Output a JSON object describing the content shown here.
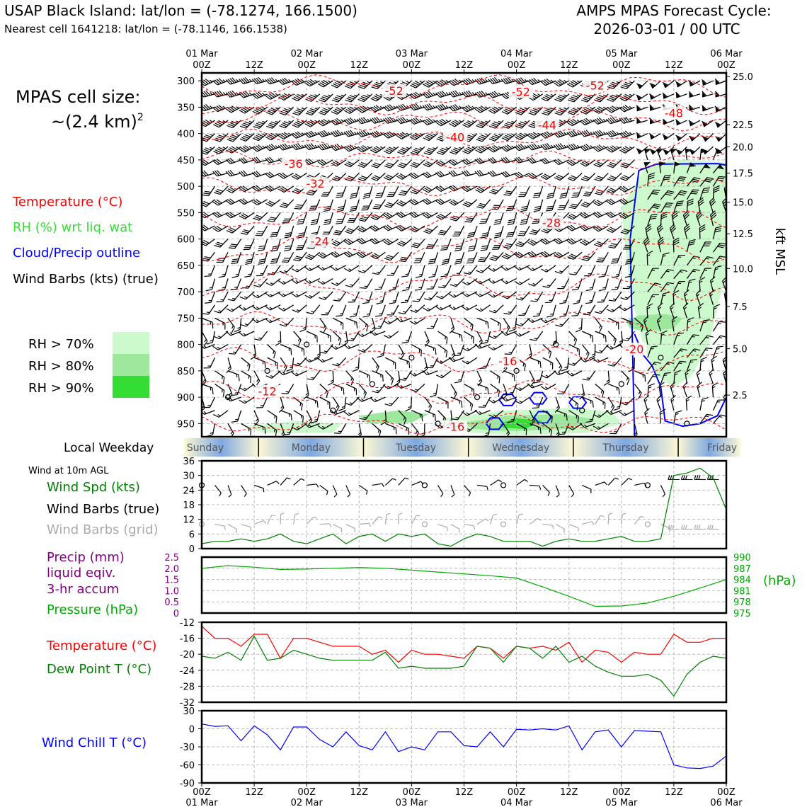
{
  "header": {
    "station": "USAP Black Island: lat/lon = (-78.1274, 166.1500)",
    "nearest": "Nearest cell 1641218: lat/lon = (-78.1146, 166.1538)",
    "cycle_title": "AMPS MPAS Forecast Cycle:",
    "cycle_date": "2026-03-01 / 00 UTC"
  },
  "legend": {
    "cell_size_line1": "MPAS cell size:",
    "cell_size_line2": "~(2.4 km)",
    "cell_size_exp": "2",
    "temperature": "Temperature (°C)",
    "rh": "RH (%) wrt liq. wat",
    "cloud": "Cloud/Precip outline",
    "wind": "Wind Barbs (kts) (true)",
    "rh70": "RH > 70%",
    "rh80": "RH > 80%",
    "rh90": "RH > 90%"
  },
  "colors": {
    "temperature": "#ff0000",
    "rh_text": "#33dd33",
    "cloud": "#0000ff",
    "rh70": "#ccfacc",
    "rh80": "#9ee89e",
    "rh90": "#33dd33",
    "wind_speed": "#008000",
    "dewpoint": "#008000",
    "precip": "#800080",
    "pressure": "#00aa00",
    "windchill": "#0000ff",
    "grid_barbs": "#aaaaaa"
  },
  "time_axis": {
    "top_dates": [
      "01 Mar",
      "",
      "02 Mar",
      "",
      "03 Mar",
      "",
      "04 Mar",
      "",
      "05 Mar",
      "",
      "06 Mar"
    ],
    "hours": [
      "00Z",
      "12Z",
      "00Z",
      "12Z",
      "00Z",
      "12Z",
      "00Z",
      "12Z",
      "00Z",
      "12Z",
      "00Z"
    ],
    "bottom_dates": [
      "01 Mar",
      "",
      "02 Mar",
      "",
      "03 Mar",
      "",
      "04 Mar",
      "",
      "05 Mar",
      "",
      "06 Mar"
    ]
  },
  "weekday": {
    "label": "Local Weekday",
    "days": [
      "Sunday",
      "Monday",
      "Tuesday",
      "Wednesday",
      "Thursday",
      "Friday"
    ]
  },
  "surface_panel": {
    "title": "Wind at 10m AGL",
    "wind_spd_label": "Wind Spd (kts)",
    "barbs_true_label": "Wind Barbs (true)",
    "barbs_grid_label": "Wind Barbs (grid)"
  },
  "precip_panel": {
    "precip_label_1": "Precip (mm)",
    "precip_label_2": "liquid eqiv.",
    "precip_label_3": "3-hr accum",
    "pressure_label": "Pressure (hPa)",
    "pressure_unit": "(hPa)"
  },
  "temp_panel": {
    "temp_label": "Temperature (°C)",
    "dew_label": "Dew Point T (°C)"
  },
  "chill_panel": {
    "label": "Wind Chill T (°C)"
  },
  "chart_data": [
    {
      "type": "contour",
      "name": "time-height cross section",
      "x": "forecast hour 0–120",
      "ylabel_right": "kft MSL",
      "y_pressure_ticks": [
        300,
        350,
        400,
        450,
        500,
        550,
        600,
        650,
        700,
        750,
        800,
        850,
        900,
        950
      ],
      "y_height_ticks": [
        {
          "p": 292,
          "kft": "25.0"
        },
        {
          "p": 383,
          "kft": "22.5"
        },
        {
          "p": 425,
          "kft": "20.0"
        },
        {
          "p": 475,
          "kft": "17.5"
        },
        {
          "p": 530,
          "kft": "15.0"
        },
        {
          "p": 590,
          "kft": "12.5"
        },
        {
          "p": 656,
          "kft": "10.0"
        },
        {
          "p": 728,
          "kft": "7.5"
        },
        {
          "p": 808,
          "kft": "5.0"
        },
        {
          "p": 896,
          "kft": "2.5"
        }
      ],
      "temperature_contours": [
        {
          "label": "-52",
          "hour": 44,
          "p": 320
        },
        {
          "label": "-52",
          "hour": 73,
          "p": 322
        },
        {
          "label": "-52",
          "hour": 90,
          "p": 310
        },
        {
          "label": "-48",
          "hour": 108,
          "p": 362
        },
        {
          "label": "-44",
          "hour": 79,
          "p": 385
        },
        {
          "label": "-40",
          "hour": 58,
          "p": 408
        },
        {
          "label": "-36",
          "hour": 21,
          "p": 458
        },
        {
          "label": "-32",
          "hour": 26,
          "p": 496
        },
        {
          "label": "-28",
          "hour": 80,
          "p": 570
        },
        {
          "label": "-24",
          "hour": 27,
          "p": 605
        },
        {
          "label": "-20",
          "hour": 99,
          "p": 810
        },
        {
          "label": "-16",
          "hour": 70,
          "p": 833
        },
        {
          "label": "-16",
          "hour": 58,
          "p": 957
        },
        {
          "label": "-12",
          "hour": 15,
          "p": 890
        }
      ]
    },
    {
      "type": "line",
      "name": "wind speed 10m",
      "ylim": [
        0,
        36
      ],
      "yticks": [
        0,
        6,
        12,
        18,
        24,
        30,
        36
      ],
      "x": [
        0,
        3,
        6,
        9,
        12,
        15,
        18,
        21,
        24,
        27,
        30,
        33,
        36,
        39,
        42,
        45,
        48,
        51,
        54,
        57,
        60,
        63,
        66,
        69,
        72,
        75,
        78,
        81,
        84,
        87,
        90,
        93,
        96,
        99,
        102,
        105,
        108,
        111,
        114,
        117,
        120
      ],
      "series": [
        {
          "values": [
            2,
            3,
            3,
            4,
            3,
            4,
            6,
            3,
            2,
            4,
            6,
            2,
            5,
            6,
            3,
            6,
            5,
            6,
            2,
            1,
            4,
            6,
            5,
            3,
            3,
            3,
            1,
            3,
            4,
            3,
            3,
            4,
            5,
            3,
            3,
            4,
            30,
            31,
            33,
            29,
            16
          ]
        }
      ]
    },
    {
      "type": "line",
      "name": "precip and pressure",
      "ylim_precip": [
        0,
        2.5
      ],
      "precip_ticks": [
        "2.5",
        "2.0",
        "1.5",
        "1.0",
        "0.5",
        "0"
      ],
      "ylim_pressure": [
        975,
        990
      ],
      "pressure_ticks": [
        "990",
        "987",
        "984",
        "981",
        "978",
        "975"
      ],
      "x": [
        0,
        6,
        12,
        18,
        24,
        30,
        36,
        42,
        48,
        54,
        60,
        66,
        72,
        78,
        84,
        90,
        96,
        102,
        108,
        114,
        120
      ],
      "series": [
        {
          "name": "Pressure (hPa)",
          "values": [
            987.0,
            987.7,
            987.3,
            986.7,
            986.8,
            987.0,
            987.2,
            987.0,
            986.5,
            986.0,
            985.5,
            985.0,
            984.4,
            982.0,
            979.5,
            976.8,
            976.9,
            977.7,
            979.5,
            981.7,
            984.0
          ]
        }
      ]
    },
    {
      "type": "line",
      "name": "temperature and dewpoint",
      "ylim": [
        -32,
        -12
      ],
      "yticks": [
        -12,
        -16,
        -20,
        -24,
        -28,
        -32
      ],
      "x": [
        0,
        3,
        6,
        9,
        12,
        15,
        18,
        21,
        24,
        27,
        30,
        33,
        36,
        39,
        42,
        45,
        48,
        51,
        54,
        57,
        60,
        63,
        66,
        69,
        72,
        75,
        78,
        81,
        84,
        87,
        90,
        93,
        96,
        99,
        102,
        105,
        108,
        111,
        114,
        117,
        120
      ],
      "series": [
        {
          "name": "Temperature",
          "values": [
            -13,
            -16,
            -16,
            -18,
            -15,
            -15,
            -21,
            -16,
            -16,
            -17,
            -18,
            -18,
            -18,
            -20,
            -19,
            -22,
            -19,
            -20,
            -20,
            -20.5,
            -21,
            -18,
            -18.5,
            -21,
            -18,
            -18.5,
            -18,
            -19,
            -17,
            -22,
            -19,
            -19.5,
            -22,
            -19.5,
            -20,
            -20,
            -15,
            -17,
            -17,
            -16,
            -16
          ]
        },
        {
          "name": "Dew Point",
          "values": [
            -20.5,
            -21,
            -19.5,
            -21.5,
            -15.5,
            -21.5,
            -21,
            -19,
            -20,
            -21,
            -21.5,
            -21.5,
            -21.5,
            -21.5,
            -19.5,
            -23.5,
            -23,
            -23.5,
            -23.5,
            -23.5,
            -23,
            -18,
            -18.5,
            -22,
            -18,
            -18.5,
            -21,
            -18,
            -22,
            -20.5,
            -23,
            -24.5,
            -25.5,
            -25.5,
            -25,
            -26.5,
            -30.5,
            -25,
            -22,
            -20.5,
            -21
          ]
        }
      ]
    },
    {
      "type": "line",
      "name": "wind chill",
      "ylim": [
        -90,
        30
      ],
      "yticks": [
        30,
        0,
        -30,
        -60,
        -90
      ],
      "x": [
        0,
        3,
        6,
        9,
        12,
        15,
        18,
        21,
        24,
        27,
        30,
        33,
        36,
        39,
        42,
        45,
        48,
        51,
        54,
        57,
        60,
        63,
        66,
        69,
        72,
        75,
        78,
        81,
        84,
        87,
        90,
        93,
        96,
        99,
        102,
        105,
        108,
        111,
        114,
        117,
        120
      ],
      "series": [
        {
          "name": "Wind Chill",
          "values": [
            8,
            4,
            5,
            -20,
            5,
            -10,
            -35,
            3,
            3,
            -18,
            -30,
            -5,
            -28,
            -35,
            -5,
            -38,
            -30,
            -35,
            -5,
            -5,
            -28,
            -30,
            -5,
            -30,
            -1,
            -2,
            0,
            -2,
            5,
            -35,
            -5,
            -2,
            -30,
            -3,
            -4,
            -5,
            -60,
            -65,
            -66,
            -62,
            -45
          ]
        }
      ]
    }
  ]
}
